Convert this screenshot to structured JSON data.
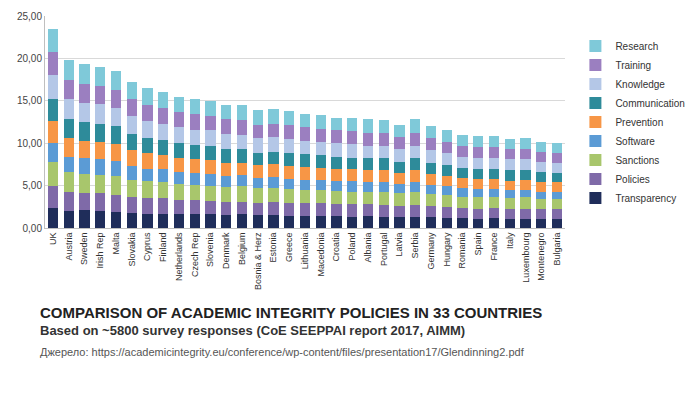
{
  "chart_data": {
    "type": "bar",
    "stacked": true,
    "title": "COMPARISON OF ACADEMIC INTEGRITY POLICIES IN 33 COUNTRIES",
    "subtitle": "Based on ~5800 survey responses (CoE SEEPPAI report 2017, AIMM)",
    "annotations": [
      "Джерело: https://academicintegrity.eu/conference/wp-content/files/presentation17/Glendinning2.pdf"
    ],
    "categories": [
      "UK",
      "Austria",
      "Sweden",
      "Irish Rep",
      "Malta",
      "Slovakia",
      "Cyprus",
      "Finland",
      "Netherlands",
      "Czech Rep",
      "Slovenia",
      "Denmark",
      "Belgium",
      "Bosnia & Herz",
      "Estonia",
      "Greece",
      "Lithuania",
      "Macedonia",
      "Croatia",
      "Poland",
      "Albania",
      "Portugal",
      "Latvia",
      "Serbia",
      "Germany",
      "Hungary",
      "Romania",
      "Spain",
      "France",
      "Italy",
      "Luxembourg",
      "Montenegro",
      "Bulgaria"
    ],
    "series": [
      {
        "name": "Transparency",
        "color": "#1f2d5a",
        "values": [
          2.4,
          2.0,
          2.1,
          2.0,
          1.9,
          1.8,
          1.7,
          1.7,
          1.6,
          1.6,
          1.6,
          1.5,
          1.6,
          1.5,
          1.5,
          1.4,
          1.4,
          1.4,
          1.4,
          1.3,
          1.4,
          1.3,
          1.3,
          1.3,
          1.3,
          1.2,
          1.2,
          1.1,
          1.2,
          1.1,
          1.1,
          1.1,
          1.1
        ]
      },
      {
        "name": "Policies",
        "color": "#7f6aa8",
        "values": [
          2.6,
          2.2,
          2.0,
          2.1,
          2.0,
          1.9,
          1.8,
          1.8,
          1.7,
          1.7,
          1.6,
          1.6,
          1.5,
          1.5,
          1.6,
          1.5,
          1.5,
          1.5,
          1.4,
          1.5,
          1.4,
          1.4,
          1.3,
          1.4,
          1.3,
          1.3,
          1.2,
          1.2,
          1.2,
          1.2,
          1.2,
          1.1,
          1.1
        ]
      },
      {
        "name": "Sanctions",
        "color": "#a8c66c",
        "values": [
          2.8,
          2.4,
          2.3,
          2.2,
          2.2,
          2.0,
          2.0,
          1.9,
          1.9,
          1.8,
          1.8,
          1.7,
          1.8,
          1.7,
          1.6,
          1.7,
          1.6,
          1.6,
          1.6,
          1.5,
          1.5,
          1.5,
          1.5,
          1.6,
          1.4,
          1.4,
          1.3,
          1.3,
          1.3,
          1.2,
          1.3,
          1.2,
          1.2
        ]
      },
      {
        "name": "Software",
        "color": "#5b9bd5",
        "values": [
          2.2,
          1.8,
          1.9,
          1.8,
          1.8,
          1.6,
          1.5,
          1.5,
          1.4,
          1.4,
          1.4,
          1.3,
          1.3,
          1.2,
          1.3,
          1.2,
          1.2,
          1.2,
          1.1,
          1.2,
          1.1,
          1.2,
          1.1,
          1.1,
          1.1,
          1.0,
          1.0,
          1.0,
          0.9,
          1.0,
          0.9,
          0.9,
          0.9
        ]
      },
      {
        "name": "Prevention",
        "color": "#f79646",
        "values": [
          2.6,
          2.2,
          2.0,
          2.1,
          2.0,
          1.9,
          1.8,
          1.7,
          1.7,
          1.6,
          1.6,
          1.6,
          1.5,
          1.5,
          1.5,
          1.5,
          1.5,
          1.4,
          1.4,
          1.4,
          1.4,
          1.4,
          1.3,
          1.4,
          1.3,
          1.2,
          1.2,
          1.2,
          1.2,
          1.1,
          1.2,
          1.1,
          1.1
        ]
      },
      {
        "name": "Communication",
        "color": "#2e8b9a",
        "values": [
          2.6,
          2.2,
          2.2,
          2.1,
          2.1,
          1.9,
          1.8,
          1.8,
          1.7,
          1.7,
          1.7,
          1.6,
          1.6,
          1.5,
          1.5,
          1.5,
          1.5,
          1.5,
          1.5,
          1.4,
          1.4,
          1.4,
          1.3,
          1.4,
          1.3,
          1.3,
          1.2,
          1.2,
          1.2,
          1.2,
          1.1,
          1.2,
          1.1
        ]
      },
      {
        "name": "Knowledge",
        "color": "#b4c7e7",
        "values": [
          2.8,
          2.4,
          2.3,
          2.3,
          2.2,
          2.1,
          2.0,
          1.9,
          1.9,
          1.8,
          1.8,
          1.8,
          1.7,
          1.7,
          1.7,
          1.7,
          1.6,
          1.6,
          1.6,
          1.6,
          1.5,
          1.5,
          1.5,
          1.5,
          1.5,
          1.4,
          1.3,
          1.3,
          1.3,
          1.3,
          1.3,
          1.2,
          1.2
        ]
      },
      {
        "name": "Training",
        "color": "#9b7fc0",
        "values": [
          2.7,
          2.3,
          2.2,
          2.2,
          2.1,
          2.0,
          1.9,
          1.8,
          1.8,
          1.8,
          1.7,
          1.7,
          1.7,
          1.6,
          1.6,
          1.6,
          1.6,
          1.5,
          1.5,
          1.5,
          1.5,
          1.5,
          1.4,
          1.5,
          1.4,
          1.3,
          1.3,
          1.2,
          1.2,
          1.2,
          1.2,
          1.2,
          1.1
        ]
      },
      {
        "name": "Research",
        "color": "#7fc9d9",
        "values": [
          2.8,
          2.3,
          2.3,
          2.2,
          2.2,
          2.0,
          2.0,
          1.9,
          1.8,
          1.8,
          1.8,
          1.7,
          1.8,
          1.7,
          1.7,
          1.7,
          1.6,
          1.6,
          1.5,
          1.6,
          1.6,
          1.5,
          1.5,
          1.6,
          1.4,
          1.4,
          1.3,
          1.3,
          1.3,
          1.2,
          1.3,
          1.2,
          1.2
        ]
      }
    ],
    "ylim": [
      0,
      25
    ],
    "yticks": [
      {
        "value": 0,
        "label": "0,00"
      },
      {
        "value": 5,
        "label": "5,00"
      },
      {
        "value": 10,
        "label": "10,00"
      },
      {
        "value": 15,
        "label": "15,00"
      },
      {
        "value": 20,
        "label": "20,00"
      },
      {
        "value": 25,
        "label": "25,00"
      }
    ],
    "grid": true,
    "legend": "right"
  }
}
